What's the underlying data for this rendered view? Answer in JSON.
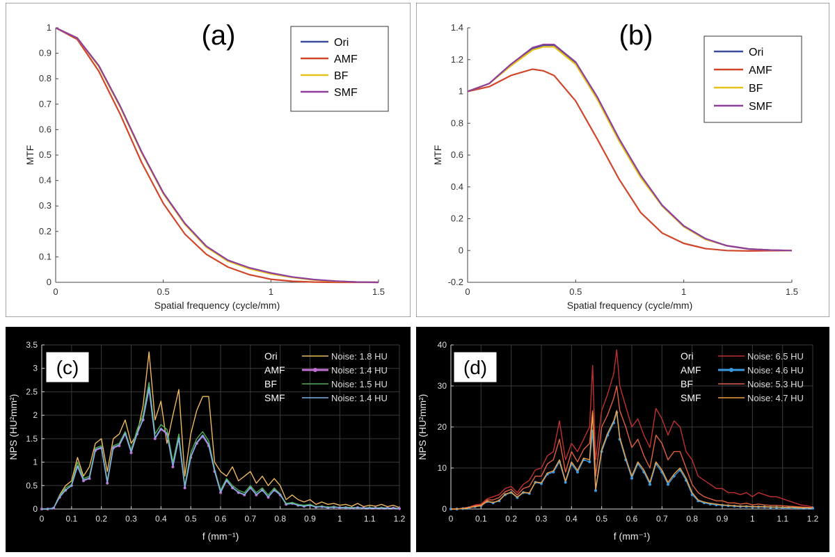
{
  "chart_data": [
    {
      "panel_label": "(a)",
      "type": "line",
      "theme": "light",
      "xlabel": "Spatial frequency (cycle/mm)",
      "ylabel": "MTF",
      "xlim": [
        0,
        1.5
      ],
      "ylim": [
        0,
        1
      ],
      "xticks": [
        0,
        0.5,
        1,
        1.5
      ],
      "xtick_labels": [
        "0",
        "0.5",
        "1",
        "1.5"
      ],
      "yticks": [
        0,
        0.1,
        0.2,
        0.3,
        0.4,
        0.5,
        0.6,
        0.7,
        0.8,
        0.9,
        1
      ],
      "ytick_labels": [
        "0",
        "0.1",
        "0.2",
        "0.3",
        "0.4",
        "0.5",
        "0.6",
        "0.7",
        "0.8",
        "0.9",
        "1"
      ],
      "grid": false,
      "legend_position": "top-right",
      "x": [
        0,
        0.1,
        0.2,
        0.3,
        0.4,
        0.5,
        0.6,
        0.7,
        0.8,
        0.9,
        1.0,
        1.1,
        1.2,
        1.3,
        1.4,
        1.5
      ],
      "series": [
        {
          "name": "Ori",
          "color": "#3b4a9b",
          "values": [
            1,
            0.96,
            0.85,
            0.69,
            0.51,
            0.35,
            0.23,
            0.14,
            0.085,
            0.055,
            0.035,
            0.02,
            0.01,
            0.004,
            0.001,
            0
          ]
        },
        {
          "name": "AMF",
          "color": "#d1462a",
          "values": [
            1,
            0.955,
            0.83,
            0.66,
            0.47,
            0.31,
            0.19,
            0.11,
            0.06,
            0.03,
            0.012,
            0.004,
            0.001,
            0,
            0,
            0
          ]
        },
        {
          "name": "BF",
          "color": "#e5c21a",
          "values": [
            1,
            0.96,
            0.848,
            0.688,
            0.508,
            0.348,
            0.228,
            0.138,
            0.083,
            0.053,
            0.033,
            0.019,
            0.009,
            0.004,
            0.001,
            0
          ]
        },
        {
          "name": "SMF",
          "color": "#8e3f9b",
          "values": [
            1,
            0.96,
            0.852,
            0.692,
            0.512,
            0.352,
            0.232,
            0.142,
            0.087,
            0.057,
            0.037,
            0.021,
            0.011,
            0.005,
            0.001,
            0
          ]
        }
      ]
    },
    {
      "panel_label": "(b)",
      "type": "line",
      "theme": "light",
      "xlabel": "Spatial frequency (cycle/mm)",
      "ylabel": "MTF",
      "xlim": [
        0,
        1.5
      ],
      "ylim": [
        -0.2,
        1.4
      ],
      "xticks": [
        0,
        0.5,
        1,
        1.5
      ],
      "xtick_labels": [
        "0",
        "0.5",
        "1",
        "1.5"
      ],
      "yticks": [
        -0.2,
        0,
        0.2,
        0.4,
        0.6,
        0.8,
        1,
        1.2,
        1.4
      ],
      "ytick_labels": [
        "-0.2",
        "0",
        "0.2",
        "0.4",
        "0.6",
        "0.8",
        "1",
        "1.2",
        "1.4"
      ],
      "grid": false,
      "legend_position": "top-right",
      "x": [
        0,
        0.1,
        0.2,
        0.3,
        0.35,
        0.4,
        0.5,
        0.6,
        0.7,
        0.8,
        0.9,
        1.0,
        1.1,
        1.2,
        1.3,
        1.4,
        1.5
      ],
      "series": [
        {
          "name": "Ori",
          "color": "#3b4a9b",
          "values": [
            1,
            1.05,
            1.17,
            1.27,
            1.29,
            1.29,
            1.18,
            0.96,
            0.7,
            0.47,
            0.28,
            0.15,
            0.07,
            0.03,
            0.01,
            0.003,
            0
          ]
        },
        {
          "name": "AMF",
          "color": "#d1462a",
          "values": [
            1,
            1.03,
            1.1,
            1.14,
            1.13,
            1.1,
            0.94,
            0.7,
            0.45,
            0.24,
            0.11,
            0.045,
            0.012,
            0,
            -0.003,
            -0.001,
            0
          ]
        },
        {
          "name": "BF",
          "color": "#e5c21a",
          "values": [
            1,
            1.05,
            1.16,
            1.26,
            1.28,
            1.28,
            1.17,
            0.95,
            0.69,
            0.46,
            0.28,
            0.15,
            0.07,
            0.03,
            0.01,
            0.003,
            0
          ]
        },
        {
          "name": "SMF",
          "color": "#8e3f9b",
          "values": [
            1,
            1.05,
            1.17,
            1.275,
            1.295,
            1.295,
            1.185,
            0.965,
            0.705,
            0.475,
            0.285,
            0.155,
            0.075,
            0.03,
            0.01,
            0.003,
            0
          ]
        }
      ]
    },
    {
      "panel_label": "(c)",
      "type": "line",
      "theme": "dark",
      "xlabel": "f (mm⁻¹)",
      "ylabel": "NPS (HU²mm²)",
      "xlim": [
        0,
        1.2
      ],
      "ylim": [
        0,
        3.5
      ],
      "xticks": [
        0,
        0.1,
        0.2,
        0.3,
        0.4,
        0.5,
        0.6,
        0.7,
        0.8,
        0.9,
        1,
        1.1,
        1.2
      ],
      "xtick_labels": [
        "0",
        "0.1",
        "0.2",
        "0.3",
        "0.4",
        "0.5",
        "0.6",
        "0.7",
        "0.8",
        "0.9",
        "1",
        "1.1",
        "1.2"
      ],
      "yticks": [
        0,
        0.5,
        1,
        1.5,
        2,
        2.5,
        3,
        3.5
      ],
      "ytick_labels": [
        "0",
        "0.5",
        "1",
        "1.5",
        "2",
        "2.5",
        "3",
        "3.5"
      ],
      "grid": true,
      "legend_position": "top-right",
      "x": [
        0,
        0.02,
        0.04,
        0.06,
        0.08,
        0.1,
        0.12,
        0.14,
        0.16,
        0.18,
        0.2,
        0.22,
        0.24,
        0.26,
        0.28,
        0.3,
        0.32,
        0.34,
        0.36,
        0.38,
        0.4,
        0.42,
        0.44,
        0.46,
        0.48,
        0.5,
        0.52,
        0.54,
        0.56,
        0.58,
        0.6,
        0.62,
        0.64,
        0.66,
        0.68,
        0.7,
        0.72,
        0.74,
        0.76,
        0.78,
        0.8,
        0.82,
        0.84,
        0.86,
        0.88,
        0.9,
        0.92,
        0.94,
        0.96,
        0.98,
        1.0,
        1.02,
        1.04,
        1.06,
        1.08,
        1.1,
        1.12,
        1.14,
        1.16,
        1.18,
        1.2
      ],
      "series": [
        {
          "name": "Ori",
          "legend_text": "Noise: 1.8 HU",
          "color": "#f0b860",
          "values": [
            0,
            0,
            0.02,
            0.3,
            0.5,
            0.6,
            1.1,
            0.7,
            0.9,
            1.4,
            1.5,
            0.8,
            1.5,
            1.6,
            1.9,
            1.4,
            1.6,
            2.2,
            3.35,
            1.9,
            2.3,
            1.4,
            2.0,
            2.55,
            0.7,
            1.6,
            2.1,
            2.4,
            2.4,
            1.0,
            0.8,
            0.7,
            0.9,
            0.6,
            0.7,
            0.8,
            0.55,
            0.7,
            0.5,
            0.65,
            0.5,
            0.2,
            0.3,
            0.2,
            0.15,
            0.2,
            0.1,
            0.15,
            0.1,
            0.12,
            0.08,
            0.1,
            0.06,
            0.12,
            0.05,
            0.08,
            0.06,
            0.1,
            0.05,
            0.08,
            0.03
          ]
        },
        {
          "name": "AMF",
          "legend_text": "Noise: 1.4 HU",
          "color": "#c070d0",
          "values": [
            0,
            0,
            0.02,
            0.25,
            0.4,
            0.5,
            0.9,
            0.6,
            0.65,
            1.25,
            1.3,
            0.55,
            1.3,
            1.35,
            1.6,
            1.2,
            1.6,
            1.9,
            2.55,
            1.5,
            1.7,
            1.6,
            0.9,
            1.5,
            0.45,
            1.1,
            1.4,
            1.55,
            1.35,
            0.8,
            0.35,
            0.6,
            0.45,
            0.35,
            0.3,
            0.45,
            0.3,
            0.4,
            0.25,
            0.4,
            0.3,
            0.1,
            0.12,
            0.08,
            0.06,
            0.08,
            0.04,
            0.05,
            0.03,
            0.04,
            0.03,
            0.03,
            0.02,
            0.03,
            0.02,
            0.02,
            0.02,
            0.02,
            0.02,
            0.02,
            0.01
          ]
        },
        {
          "name": "BF",
          "legend_text": "Noise: 1.5 HU",
          "color": "#50b050",
          "values": [
            0,
            0,
            0.02,
            0.28,
            0.45,
            0.52,
            1.0,
            0.65,
            0.7,
            1.3,
            1.35,
            0.6,
            1.35,
            1.4,
            1.65,
            1.25,
            1.7,
            2.0,
            2.7,
            1.6,
            1.8,
            1.7,
            1.0,
            1.6,
            0.5,
            1.2,
            1.5,
            1.65,
            1.45,
            0.85,
            0.4,
            0.65,
            0.5,
            0.4,
            0.35,
            0.5,
            0.35,
            0.45,
            0.3,
            0.45,
            0.32,
            0.12,
            0.14,
            0.1,
            0.08,
            0.1,
            0.05,
            0.06,
            0.04,
            0.05,
            0.03,
            0.04,
            0.03,
            0.03,
            0.02,
            0.03,
            0.02,
            0.03,
            0.02,
            0.02,
            0.01
          ]
        },
        {
          "name": "SMF",
          "legend_text": "Noise: 1.4 HU",
          "color": "#7ab4e8",
          "values": [
            0,
            0,
            0.02,
            0.26,
            0.41,
            0.5,
            0.92,
            0.62,
            0.66,
            1.27,
            1.32,
            0.56,
            1.32,
            1.37,
            1.62,
            1.22,
            1.62,
            1.92,
            2.6,
            1.52,
            1.72,
            1.62,
            0.92,
            1.52,
            0.46,
            1.12,
            1.42,
            1.58,
            1.38,
            0.82,
            0.36,
            0.62,
            0.46,
            0.36,
            0.31,
            0.46,
            0.31,
            0.41,
            0.26,
            0.41,
            0.31,
            0.1,
            0.12,
            0.08,
            0.06,
            0.08,
            0.04,
            0.05,
            0.03,
            0.04,
            0.03,
            0.03,
            0.02,
            0.03,
            0.02,
            0.02,
            0.02,
            0.02,
            0.02,
            0.02,
            0.01
          ]
        }
      ]
    },
    {
      "panel_label": "(d)",
      "type": "line",
      "theme": "dark",
      "xlabel": "f (mm⁻¹)",
      "ylabel": "NPS (HU²mm²)",
      "xlim": [
        0,
        1.2
      ],
      "ylim": [
        0,
        40
      ],
      "xticks": [
        0,
        0.1,
        0.2,
        0.3,
        0.4,
        0.5,
        0.6,
        0.7,
        0.8,
        0.9,
        1,
        1.1,
        1.2
      ],
      "xtick_labels": [
        "0",
        "0.1",
        "0.2",
        "0.3",
        "0.4",
        "0.5",
        "0.6",
        "0.7",
        "0.8",
        "0.9",
        "1",
        "1.1",
        "1.2"
      ],
      "yticks": [
        0,
        10,
        20,
        30,
        40
      ],
      "ytick_labels": [
        "0",
        "10",
        "20",
        "30",
        "40"
      ],
      "grid": true,
      "legend_position": "top-right",
      "x": [
        0,
        0.02,
        0.04,
        0.06,
        0.08,
        0.1,
        0.12,
        0.14,
        0.16,
        0.18,
        0.2,
        0.22,
        0.24,
        0.26,
        0.28,
        0.3,
        0.32,
        0.34,
        0.36,
        0.38,
        0.4,
        0.42,
        0.44,
        0.46,
        0.47,
        0.48,
        0.5,
        0.52,
        0.54,
        0.55,
        0.56,
        0.58,
        0.6,
        0.62,
        0.64,
        0.66,
        0.68,
        0.7,
        0.72,
        0.74,
        0.76,
        0.78,
        0.8,
        0.82,
        0.84,
        0.86,
        0.88,
        0.9,
        0.92,
        0.94,
        0.96,
        0.98,
        1.0,
        1.02,
        1.04,
        1.06,
        1.08,
        1.1,
        1.12,
        1.14,
        1.16,
        1.18,
        1.2
      ],
      "series": [
        {
          "name": "Ori",
          "legend_text": "Noise: 6.5 HU",
          "color": "#c03030",
          "values": [
            0,
            0,
            0.2,
            0.5,
            1,
            1.2,
            2.5,
            3,
            3.5,
            5,
            5.5,
            4,
            6,
            7,
            9.5,
            10,
            13,
            14,
            21.5,
            12,
            16,
            14,
            17,
            20,
            35,
            12,
            24,
            28,
            33,
            38.8,
            30,
            25,
            20,
            22,
            18,
            15,
            24.5,
            22,
            18,
            21.5,
            20,
            14,
            12,
            8,
            7,
            6,
            5,
            5,
            4,
            4,
            3.5,
            4,
            3,
            4,
            3.5,
            3,
            3,
            2.5,
            2,
            1.5,
            1,
            0.8,
            0.5
          ]
        },
        {
          "name": "AMF",
          "legend_text": "Noise: 4.6 HU",
          "color": "#3a9ae0",
          "values": [
            0,
            0,
            0.1,
            0.3,
            0.6,
            0.8,
            1.8,
            1.5,
            2,
            3.5,
            4,
            2.8,
            4,
            3.8,
            6.5,
            6.2,
            8.5,
            9,
            11.5,
            6.5,
            11,
            9,
            12,
            11.5,
            19,
            4.5,
            14,
            18,
            21,
            23.5,
            17,
            12,
            7.5,
            11,
            9,
            6,
            11,
            9,
            6,
            8,
            9.5,
            7,
            3.5,
            2,
            1.5,
            1.2,
            1,
            0.9,
            0.8,
            0.7,
            0.6,
            0.6,
            0.5,
            0.5,
            0.5,
            0.4,
            0.4,
            0.3,
            0.3,
            0.3,
            0.2,
            0.2,
            0.2
          ]
        },
        {
          "name": "BF",
          "legend_text": "Noise: 5.3 HU",
          "color": "#e06040",
          "values": [
            0,
            0,
            0.15,
            0.4,
            0.8,
            1,
            2.2,
            2.2,
            2.8,
            4.2,
            4.8,
            3.4,
            5,
            5.5,
            8,
            8,
            11,
            12,
            17,
            9,
            14,
            11.5,
            14.5,
            16,
            24,
            8,
            20,
            23,
            27,
            30,
            24,
            20,
            15,
            17,
            13,
            10,
            18,
            16,
            12,
            14,
            14,
            10,
            6,
            4,
            3,
            2.5,
            2,
            2,
            1.5,
            1.5,
            1.2,
            1.4,
            1,
            1.2,
            1,
            0.9,
            0.9,
            0.8,
            0.7,
            0.6,
            0.5,
            0.4,
            0.3
          ]
        },
        {
          "name": "SMF",
          "legend_text": "Noise: 4.7 HU",
          "color": "#f0a040",
          "values": [
            0,
            0,
            0.1,
            0.3,
            0.6,
            0.8,
            1.9,
            1.6,
            2.1,
            3.6,
            4.1,
            2.9,
            4.1,
            3.9,
            6.6,
            6.4,
            8.8,
            9.3,
            12,
            6.8,
            11.5,
            9.4,
            12.4,
            12,
            23.5,
            4.8,
            14.5,
            18.5,
            21.5,
            24,
            17.5,
            12.5,
            8,
            11.5,
            9.5,
            6.5,
            11.5,
            9.5,
            6.5,
            8.5,
            10,
            7.5,
            4,
            2.2,
            1.7,
            1.4,
            1.2,
            1,
            0.9,
            0.8,
            0.7,
            0.7,
            0.6,
            0.6,
            0.6,
            0.5,
            0.5,
            0.4,
            0.4,
            0.4,
            0.3,
            0.3,
            0.3
          ]
        }
      ]
    }
  ]
}
